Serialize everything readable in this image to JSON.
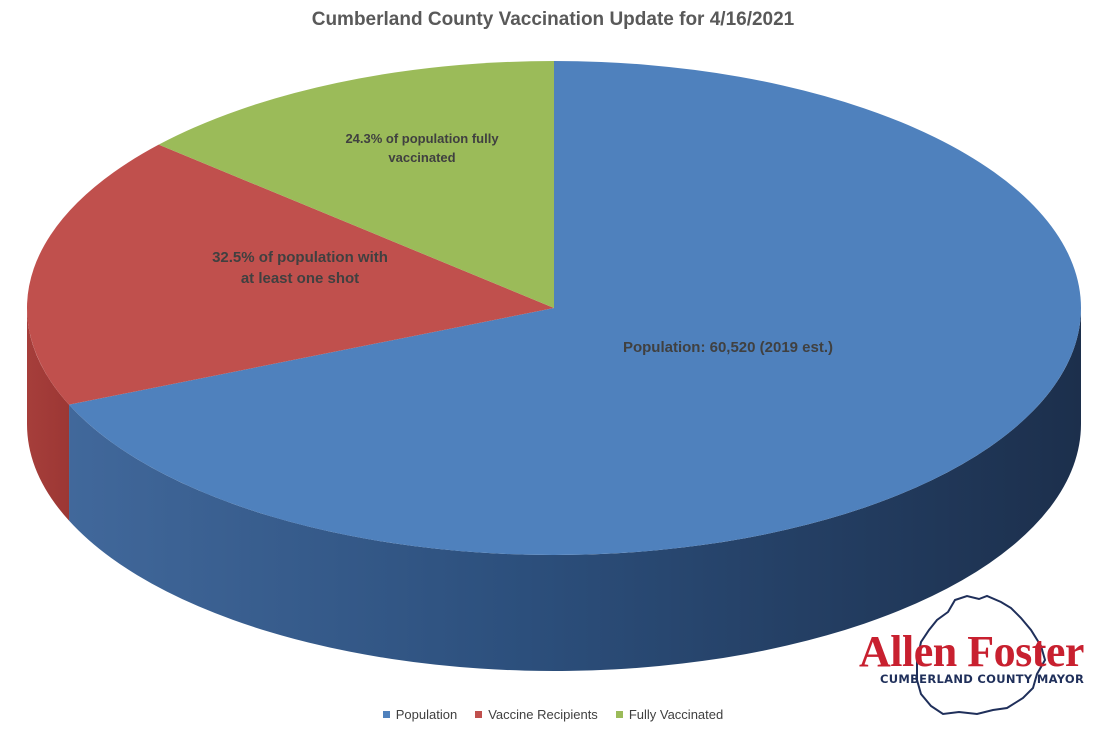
{
  "chart_data": {
    "type": "pie",
    "title": "Cumberland County Vaccination Update for 4/16/2021",
    "slices": [
      {
        "name": "Population",
        "label": [
          "Population: 60,520 (2019 est.)"
        ],
        "percent": 68.6,
        "color": "#4f81bd"
      },
      {
        "name": "Vaccine Recipients",
        "label": [
          "32.5% of population with",
          "at least one shot"
        ],
        "percent": 17.9,
        "color": "#c0504d"
      },
      {
        "name": "Fully Vaccinated",
        "label": [
          "24.3% of population fully",
          "vaccinated"
        ],
        "percent": 13.5,
        "color": "#9bbb59"
      }
    ],
    "legend_position": "bottom",
    "style": "3d"
  },
  "logo": {
    "name": "Allen Foster",
    "subtitle": "CUMBERLAND COUNTY MAYOR",
    "colors": {
      "name": "#c8202f",
      "subtitle": "#1f2f5a"
    }
  }
}
